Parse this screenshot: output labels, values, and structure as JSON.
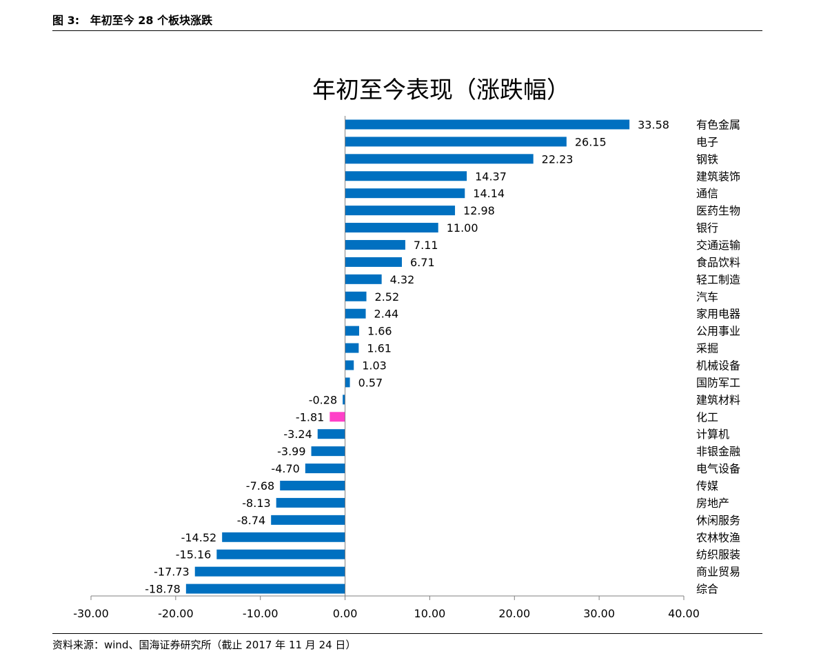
{
  "header": {
    "figure_label": "图 3:",
    "figure_title": "年初至今 28 个板块涨跌"
  },
  "footer": {
    "source": "资料来源：wind、国海证券研究所（截止 2017 年 11 月 24 日）"
  },
  "colors": {
    "bar": "#0070c0",
    "highlight": "#ff40c8",
    "axis": "#7f7f7f"
  },
  "chart_data": {
    "type": "bar",
    "orientation": "horizontal",
    "title": "年初至今表现（涨跌幅）",
    "xlabel": "",
    "ylabel": "",
    "xlim": [
      -30,
      40
    ],
    "xticks": [
      "-30.00",
      "-20.00",
      "-10.00",
      "0.00",
      "10.00",
      "20.00",
      "30.00",
      "40.00"
    ],
    "grid": false,
    "legend": "none",
    "highlight_category": "化工",
    "categories": [
      "有色金属",
      "电子",
      "钢铁",
      "建筑装饰",
      "通信",
      "医药生物",
      "银行",
      "交通运输",
      "食品饮料",
      "轻工制造",
      "汽车",
      "家用电器",
      "公用事业",
      "采掘",
      "机械设备",
      "国防军工",
      "建筑材料",
      "化工",
      "计算机",
      "非银金融",
      "电气设备",
      "传媒",
      "房地产",
      "休闲服务",
      "农林牧渔",
      "纺织服装",
      "商业贸易",
      "综合"
    ],
    "values": [
      33.58,
      26.15,
      22.23,
      14.37,
      14.14,
      12.98,
      11.0,
      7.11,
      6.71,
      4.32,
      2.52,
      2.44,
      1.66,
      1.61,
      1.03,
      0.57,
      -0.28,
      -1.81,
      -3.24,
      -3.99,
      -4.7,
      -7.68,
      -8.13,
      -8.74,
      -14.52,
      -15.16,
      -17.73,
      -18.78
    ],
    "value_labels": [
      "33.58",
      "26.15",
      "22.23",
      "14.37",
      "14.14",
      "12.98",
      "11.00",
      "7.11",
      "6.71",
      "4.32",
      "2.52",
      "2.44",
      "1.66",
      "1.61",
      "1.03",
      "0.57",
      "-0.28",
      "-1.81",
      "-3.24",
      "-3.99",
      "-4.70",
      "-7.68",
      "-8.13",
      "-8.74",
      "-14.52",
      "-15.16",
      "-17.73",
      "-18.78"
    ]
  }
}
